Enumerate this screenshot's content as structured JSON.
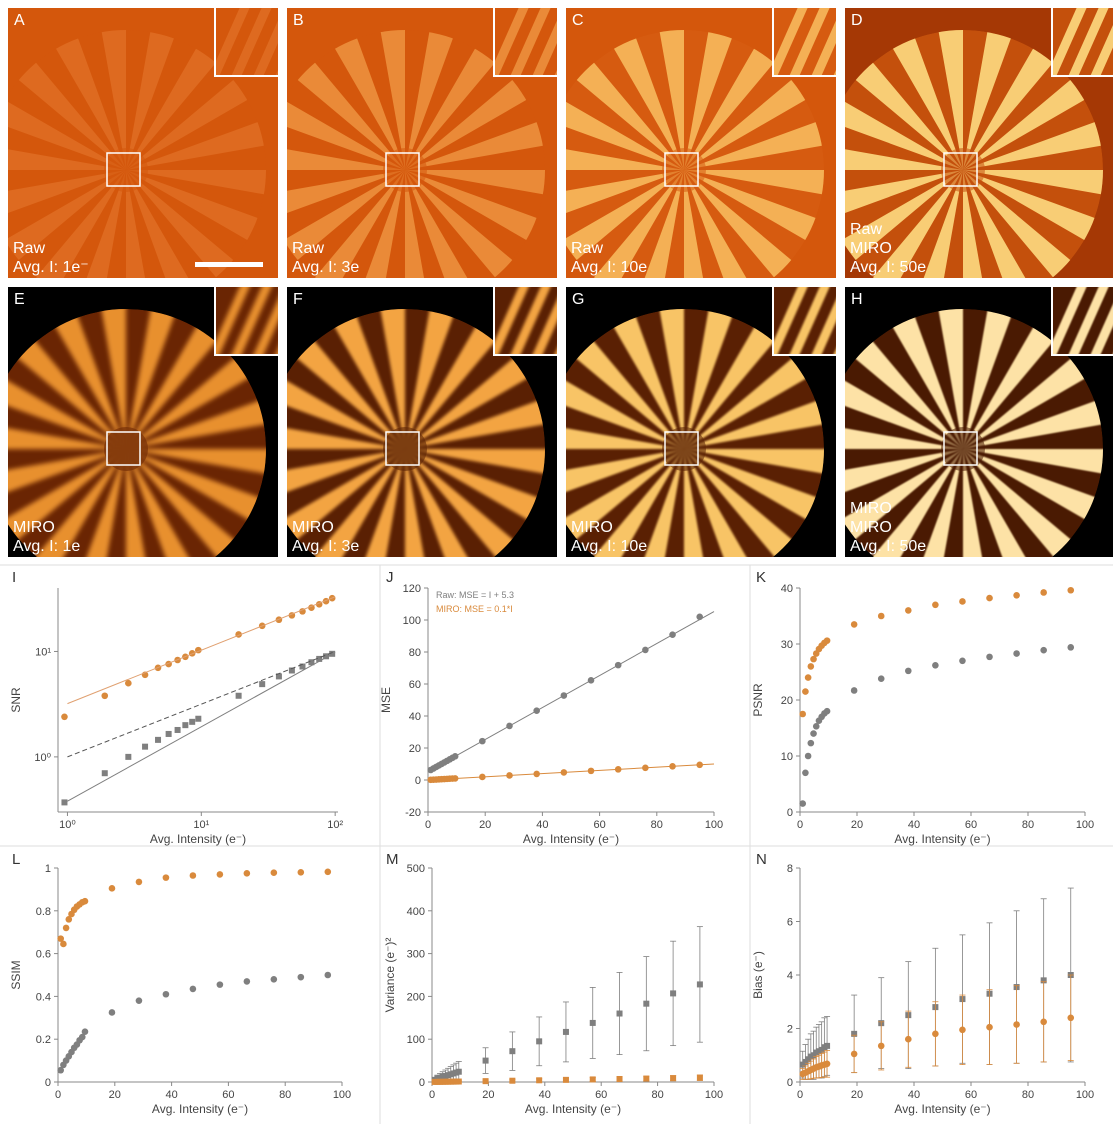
{
  "panels": [
    {
      "letter": "A",
      "lines": [
        "Raw",
        "Avg. I: 1e⁻"
      ]
    },
    {
      "letter": "B",
      "lines": [
        "Raw",
        "Avg. I: 3e"
      ]
    },
    {
      "letter": "C",
      "lines": [
        "Raw",
        "Avg. I: 10e"
      ]
    },
    {
      "letter": "D",
      "lines": [
        "Raw",
        "MIRO",
        "Avg. I: 50e"
      ]
    },
    {
      "letter": "E",
      "lines": [
        "MIRO",
        "Avg. I: 1e"
      ]
    },
    {
      "letter": "F",
      "lines": [
        "MIRO",
        "Avg. I: 3e"
      ]
    },
    {
      "letter": "G",
      "lines": [
        "MIRO",
        "Avg. I: 10e"
      ]
    },
    {
      "letter": "H",
      "lines": [
        "MIRO",
        "MIRO",
        "Avg. I: 50e"
      ]
    }
  ],
  "chart_data": [
    {
      "type": "scatter",
      "panel_label": "I",
      "x_label": "Avg. Intensity (e⁻)",
      "y_label": "SNR",
      "xlog": true,
      "ylog": true,
      "xlim": [
        0.85,
        105
      ],
      "ylim": [
        0.3,
        40
      ],
      "xticks": [
        {
          "value": 1,
          "label": "10⁰"
        },
        {
          "value": 10,
          "label": "10¹"
        },
        {
          "value": 100,
          "label": "10²"
        }
      ],
      "yticks": [
        {
          "value": 1,
          "label": "10⁰"
        },
        {
          "value": 10,
          "label": "10¹"
        }
      ],
      "x": [
        0.95,
        1.9,
        2.85,
        3.8,
        4.75,
        5.7,
        6.65,
        7.6,
        8.55,
        9.5,
        19,
        28.5,
        38,
        47.5,
        57,
        66.5,
        76,
        85.5,
        95
      ],
      "series": [
        {
          "color": "#d98a3c",
          "marker": "circle",
          "values": [
            2.4,
            3.8,
            5,
            6,
            7,
            7.6,
            8.3,
            8.9,
            9.6,
            10.3,
            14.5,
            17.5,
            20,
            22,
            24,
            26,
            28,
            30,
            32
          ]
        },
        {
          "color": "#7f7f7f",
          "marker": "square",
          "values": [
            0.37,
            0.7,
            1,
            1.25,
            1.45,
            1.65,
            1.8,
            2,
            2.15,
            2.3,
            3.8,
            4.9,
            5.8,
            6.6,
            7.2,
            7.9,
            8.5,
            9,
            9.5
          ]
        },
        {
          "color": "#e0a070",
          "line": true,
          "x": [
            1,
            100
          ],
          "values": [
            3.2,
            33
          ]
        },
        {
          "color": "#7f7f7f",
          "line": true,
          "x": [
            1,
            100
          ],
          "values": [
            0.38,
            9.8
          ]
        },
        {
          "color": "#555555",
          "line": true,
          "dash": true,
          "x": [
            1,
            100
          ],
          "values": [
            1,
            10
          ]
        }
      ]
    },
    {
      "type": "scatter",
      "panel_label": "J",
      "x_label": "Avg. Intensity (e⁻)",
      "y_label": "MSE",
      "xlim": [
        0,
        100
      ],
      "ylim": [
        -20,
        120
      ],
      "xticks": [
        0,
        20,
        40,
        60,
        80,
        100
      ],
      "yticks": [
        -20,
        0,
        20,
        40,
        60,
        80,
        100,
        120
      ],
      "annotations": [
        {
          "text": "Raw:  MSE = I + 5.3",
          "color": "#7f7f7f"
        },
        {
          "text": "MIRO:  MSE = 0.1*I",
          "color": "#d98a3c"
        }
      ],
      "x": [
        0.95,
        1.9,
        2.85,
        3.8,
        4.75,
        5.7,
        6.65,
        7.6,
        8.55,
        9.5,
        19,
        28.5,
        38,
        47.5,
        57,
        66.5,
        76,
        85.5,
        95
      ],
      "series": [
        {
          "color": "#7f7f7f",
          "marker": "circle",
          "values": [
            6.25,
            7.2,
            8.15,
            9.1,
            10.05,
            11,
            11.95,
            12.9,
            13.85,
            14.8,
            24.3,
            33.8,
            43.3,
            52.8,
            62.3,
            71.8,
            81.3,
            90.8,
            102
          ]
        },
        {
          "color": "#d98a3c",
          "marker": "circle",
          "values": [
            0.1,
            0.2,
            0.3,
            0.4,
            0.5,
            0.6,
            0.7,
            0.8,
            0.9,
            1,
            1.9,
            2.85,
            3.8,
            4.75,
            5.7,
            6.65,
            7.6,
            8.55,
            9.5
          ]
        },
        {
          "color": "#7f7f7f",
          "line": true,
          "x": [
            0,
            100
          ],
          "values": [
            5.3,
            105.3
          ]
        },
        {
          "color": "#d98a3c",
          "line": true,
          "x": [
            0,
            100
          ],
          "values": [
            0,
            10
          ]
        }
      ]
    },
    {
      "type": "scatter",
      "panel_label": "K",
      "x_label": "Avg. Intensity (e⁻)",
      "y_label": "PSNR",
      "xlim": [
        0,
        100
      ],
      "ylim": [
        0,
        40
      ],
      "xticks": [
        0,
        20,
        40,
        60,
        80,
        100
      ],
      "yticks": [
        0,
        10,
        20,
        30,
        40
      ],
      "x": [
        0.95,
        1.9,
        2.85,
        3.8,
        4.75,
        5.7,
        6.65,
        7.6,
        8.55,
        9.5,
        19,
        28.5,
        38,
        47.5,
        57,
        66.5,
        76,
        85.5,
        95
      ],
      "series": [
        {
          "color": "#d98a3c",
          "marker": "circle",
          "values": [
            17.5,
            21.5,
            24,
            26,
            27.3,
            28.3,
            29.1,
            29.7,
            30.2,
            30.6,
            33.5,
            35,
            36,
            37,
            37.6,
            38.2,
            38.7,
            39.2,
            39.6
          ]
        },
        {
          "color": "#7f7f7f",
          "marker": "circle",
          "values": [
            1.5,
            7,
            10,
            12.3,
            14,
            15.3,
            16.3,
            17,
            17.6,
            18,
            21.7,
            23.8,
            25.2,
            26.2,
            27,
            27.7,
            28.3,
            28.9,
            29.4
          ]
        }
      ]
    },
    {
      "type": "scatter",
      "panel_label": "L",
      "x_label": "Avg. Intensity (e⁻)",
      "y_label": "SSIM",
      "xlim": [
        0,
        100
      ],
      "ylim": [
        0,
        1
      ],
      "xticks": [
        0,
        20,
        40,
        60,
        80,
        100
      ],
      "yticks": [
        0,
        0.2,
        0.4,
        0.6,
        0.8,
        1
      ],
      "x": [
        0.95,
        1.9,
        2.85,
        3.8,
        4.75,
        5.7,
        6.65,
        7.6,
        8.55,
        9.5,
        19,
        28.5,
        38,
        47.5,
        57,
        66.5,
        76,
        85.5,
        95
      ],
      "series": [
        {
          "color": "#d98a3c",
          "marker": "circle",
          "values": [
            0.67,
            0.645,
            0.72,
            0.76,
            0.785,
            0.805,
            0.82,
            0.83,
            0.84,
            0.845,
            0.905,
            0.935,
            0.955,
            0.965,
            0.97,
            0.975,
            0.978,
            0.98,
            0.982
          ]
        },
        {
          "color": "#7f7f7f",
          "marker": "circle",
          "values": [
            0.055,
            0.08,
            0.1,
            0.12,
            0.14,
            0.16,
            0.175,
            0.195,
            0.21,
            0.235,
            0.325,
            0.38,
            0.41,
            0.435,
            0.455,
            0.47,
            0.48,
            0.49,
            0.5
          ]
        }
      ]
    },
    {
      "type": "scatter",
      "panel_label": "M",
      "x_label": "Avg. Intensity (e⁻)",
      "y_label": "Variance (e⁻)²",
      "xlim": [
        0,
        100
      ],
      "ylim": [
        0,
        500
      ],
      "xticks": [
        0,
        20,
        40,
        60,
        80,
        100
      ],
      "yticks": [
        0,
        100,
        200,
        300,
        400,
        500
      ],
      "x": [
        0.95,
        1.9,
        2.85,
        3.8,
        4.75,
        5.7,
        6.65,
        7.6,
        8.55,
        9.5,
        19,
        28.5,
        38,
        47.5,
        57,
        66.5,
        76,
        85.5,
        95
      ],
      "series": [
        {
          "color": "#7f7f7f",
          "marker": "square",
          "values": [
            5,
            8,
            10,
            12,
            14,
            16,
            18,
            20,
            22,
            24,
            50,
            72,
            95,
            117,
            138,
            160,
            183,
            207,
            228
          ],
          "errors": [
            5,
            8,
            10,
            12,
            14,
            16,
            18,
            20,
            22,
            24,
            30,
            45,
            57,
            70,
            83,
            96,
            110,
            122,
            135
          ]
        },
        {
          "color": "#d98a3c",
          "marker": "square",
          "values": [
            0.2,
            0.3,
            0.4,
            0.5,
            0.6,
            0.7,
            0.8,
            0.9,
            1,
            1.1,
            2,
            3,
            4,
            5,
            6,
            7,
            8,
            9,
            10
          ],
          "errors": [
            0.3,
            0.4,
            0.5,
            0.6,
            0.7,
            0.8,
            0.9,
            1,
            1.1,
            1.2,
            2,
            3,
            3.5,
            4,
            4.5,
            5,
            5.5,
            6,
            6.5
          ]
        }
      ]
    },
    {
      "type": "scatter",
      "panel_label": "N",
      "x_label": "Avg. Intensity (e⁻)",
      "y_label": "Bias (e⁻)",
      "xlim": [
        0,
        100
      ],
      "ylim": [
        0,
        8
      ],
      "xticks": [
        0,
        20,
        40,
        60,
        80,
        100
      ],
      "yticks": [
        0,
        2,
        4,
        6,
        8
      ],
      "x": [
        0.95,
        1.9,
        2.85,
        3.8,
        4.75,
        5.7,
        6.65,
        7.6,
        8.55,
        9.5,
        19,
        28.5,
        38,
        47.5,
        57,
        66.5,
        76,
        85.5,
        95
      ],
      "series": [
        {
          "color": "#7f7f7f",
          "marker": "square",
          "values": [
            0.65,
            0.75,
            0.85,
            0.95,
            1,
            1.1,
            1.15,
            1.2,
            1.3,
            1.35,
            1.8,
            2.2,
            2.5,
            2.8,
            3.1,
            3.3,
            3.55,
            3.8,
            4
          ],
          "errors": [
            0.5,
            0.65,
            0.75,
            0.85,
            0.9,
            0.95,
            1,
            1.05,
            1.1,
            1.1,
            1.45,
            1.7,
            2,
            2.2,
            2.4,
            2.65,
            2.85,
            3.05,
            3.25
          ]
        },
        {
          "color": "#d98a3c",
          "marker": "circle",
          "values": [
            0.3,
            0.35,
            0.4,
            0.45,
            0.5,
            0.55,
            0.58,
            0.62,
            0.65,
            0.68,
            1.05,
            1.35,
            1.6,
            1.8,
            1.95,
            2.05,
            2.15,
            2.25,
            2.4
          ],
          "errors": [
            0.2,
            0.25,
            0.3,
            0.33,
            0.36,
            0.4,
            0.42,
            0.45,
            0.47,
            0.5,
            0.7,
            0.9,
            1.05,
            1.2,
            1.3,
            1.4,
            1.45,
            1.5,
            1.6
          ]
        }
      ]
    }
  ]
}
